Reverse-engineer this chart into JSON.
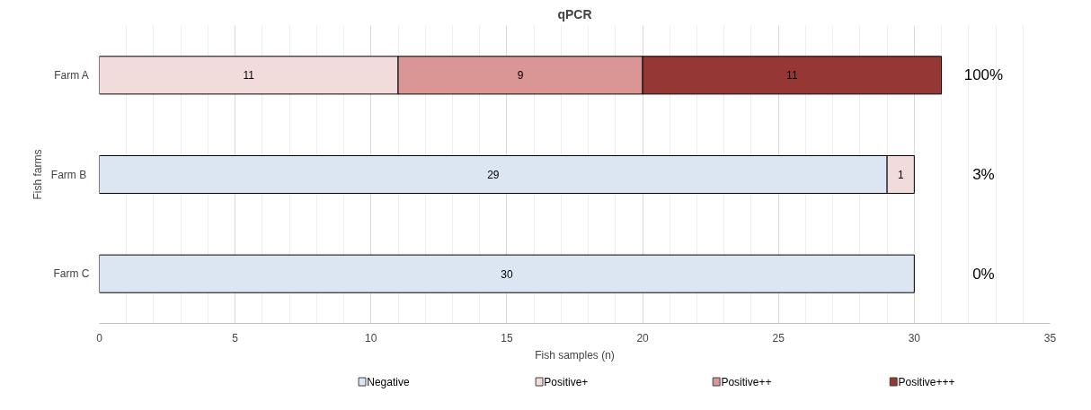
{
  "chart_data": {
    "type": "bar",
    "orientation": "horizontal",
    "stacked": true,
    "title": "qPCR",
    "xlabel": "Fish samples (n)",
    "ylabel": "Fish farms",
    "categories": [
      "Farm A",
      "Farm  B",
      "Farm C"
    ],
    "series": [
      {
        "name": "Negative",
        "color": "#dce6f2",
        "values": [
          null,
          29,
          30
        ]
      },
      {
        "name": "Positive+",
        "color": "#f2dcdb",
        "values": [
          11,
          1,
          null
        ]
      },
      {
        "name": "Positive++",
        "color": "#d99694",
        "values": [
          9,
          null,
          null
        ]
      },
      {
        "name": "Positive+++",
        "color": "#953735",
        "values": [
          11,
          null,
          null
        ]
      }
    ],
    "xlim": [
      0,
      35
    ],
    "xticks": [
      0,
      5,
      10,
      15,
      20,
      25,
      30,
      35
    ],
    "grid": "x",
    "legend": "bottom",
    "data_labels": true,
    "annotations": [
      "100%",
      "3%",
      "0%"
    ]
  }
}
